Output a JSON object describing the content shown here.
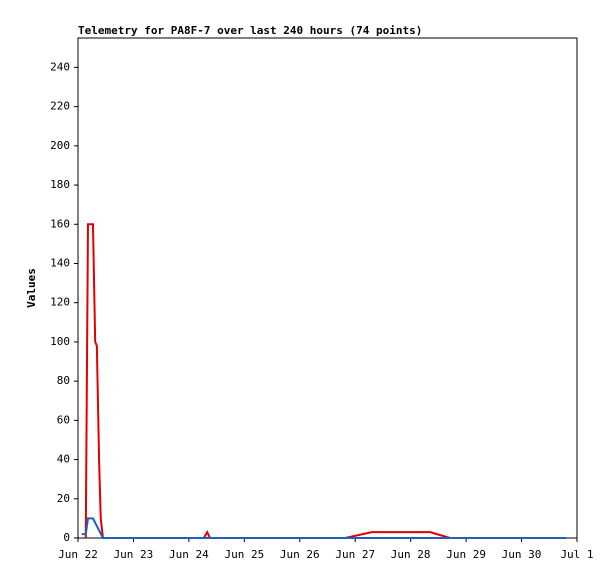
{
  "chart_data": {
    "type": "line",
    "title": "Telemetry for PA8F-7 over last 240 hours (74 points)",
    "y_label": "Values",
    "xlim": [
      0,
      9
    ],
    "xticks": [
      {
        "value": 0,
        "label": "Jun 22"
      },
      {
        "value": 1,
        "label": "Jun 23"
      },
      {
        "value": 2,
        "label": "Jun 24"
      },
      {
        "value": 3,
        "label": "Jun 25"
      },
      {
        "value": 4,
        "label": "Jun 26"
      },
      {
        "value": 5,
        "label": "Jun 27"
      },
      {
        "value": 6,
        "label": "Jun 28"
      },
      {
        "value": 7,
        "label": "Jun 29"
      },
      {
        "value": 8,
        "label": "Jun 30"
      },
      {
        "value": 9,
        "label": "Jul 1"
      }
    ],
    "ylim": [
      0,
      255
    ],
    "yticks": [
      0,
      20,
      40,
      60,
      80,
      100,
      120,
      140,
      160,
      180,
      200,
      220,
      240
    ],
    "grid": false,
    "series": [
      {
        "color": "#e00000",
        "x": [
          0.14,
          0.18,
          0.27,
          0.31,
          0.34,
          0.38,
          0.41,
          0.45,
          2.27,
          2.33,
          2.38,
          4.82,
          5.3,
          6.35,
          6.71,
          8.8
        ],
        "values": [
          0,
          160,
          160,
          100,
          98,
          40,
          10,
          0,
          0,
          3,
          0,
          0,
          3,
          3,
          0,
          0
        ]
      },
      {
        "color": "#1f5fbf",
        "x": [
          0.07,
          0.14,
          0.18,
          0.27,
          0.45,
          8.8
        ],
        "values": [
          2,
          2,
          10,
          10,
          0,
          0
        ]
      }
    ]
  }
}
